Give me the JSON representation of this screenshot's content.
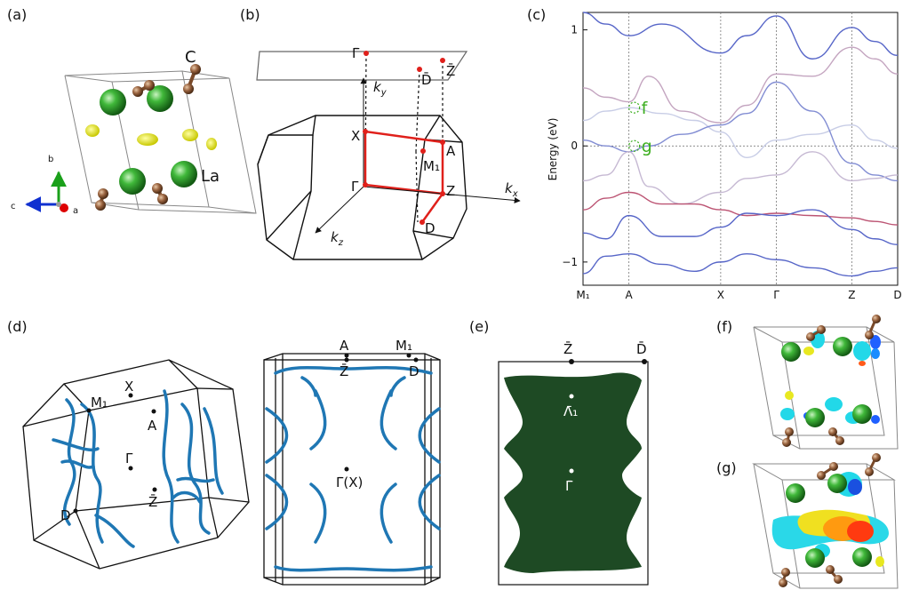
{
  "panel_labels": {
    "a": "(a)",
    "b": "(b)",
    "c": "(c)",
    "d": "(d)",
    "e": "(e)",
    "f": "(f)",
    "g": "(g)"
  },
  "panel_a": {
    "atom_labels": {
      "carbon": "C",
      "lanthanum": "La"
    },
    "axes": {
      "a": "a",
      "b": "b",
      "c": "c"
    }
  },
  "panel_b": {
    "points": {
      "gamma_bar": "Γ̄",
      "d_bar": "D̄",
      "z_bar": "Z̄",
      "x": "X",
      "a": "A",
      "m1": "M₁",
      "gamma": "Γ",
      "z": "Z",
      "d": "D"
    },
    "axis_labels": {
      "ky": "k",
      "ky_sub": "y",
      "kx": "k",
      "kx_sub": "x",
      "kz": "k",
      "kz_sub": "z"
    }
  },
  "chart_data": {
    "type": "line",
    "title": "",
    "xlabel": "",
    "ylabel": "Energy (eV)",
    "ylim": [
      -1.2,
      1.15
    ],
    "yticks": [
      -1,
      0,
      1
    ],
    "yticklabels": [
      "−1",
      "0",
      "1"
    ],
    "x_path": [
      "M₁",
      "A",
      "X",
      "Γ",
      "Z",
      "D"
    ],
    "x_positions": [
      0,
      0.7,
      2.1,
      2.95,
      4.1,
      4.8
    ],
    "color_scale": "blue (low weight) → red (high weight)",
    "annotations": [
      {
        "label": "f",
        "x": 0.7,
        "y": 0.33
      },
      {
        "label": "g",
        "x": 0.7,
        "y": 0.0
      }
    ],
    "series": [
      {
        "x": [
          0,
          0.35,
          0.7,
          1.2,
          2.1,
          2.5,
          2.95,
          3.5,
          4.1,
          4.45,
          4.8
        ],
        "values": [
          1.18,
          1.05,
          0.95,
          1.05,
          0.8,
          0.95,
          1.12,
          0.75,
          1.02,
          0.9,
          0.78
        ],
        "weight": 0.1
      },
      {
        "x": [
          0,
          0.35,
          0.7,
          1.0,
          1.5,
          2.1,
          2.5,
          2.95,
          3.5,
          4.1,
          4.45,
          4.8
        ],
        "values": [
          0.5,
          0.42,
          0.38,
          0.6,
          0.3,
          0.2,
          0.35,
          0.62,
          0.6,
          0.85,
          0.75,
          0.62
        ],
        "weight": 0.6
      },
      {
        "x": [
          0,
          0.35,
          0.7,
          1.2,
          1.7,
          2.1,
          2.5,
          2.95,
          3.5,
          4.1,
          4.45,
          4.8
        ],
        "values": [
          0.22,
          0.3,
          0.33,
          0.28,
          0.22,
          0.12,
          -0.1,
          0.05,
          0.1,
          0.18,
          0.05,
          -0.02
        ],
        "weight": 0.5
      },
      {
        "x": [
          0,
          0.35,
          0.7,
          1.0,
          1.5,
          2.1,
          2.5,
          2.95,
          3.5,
          4.1,
          4.45,
          4.8
        ],
        "values": [
          0.05,
          0.0,
          -0.05,
          0.0,
          0.1,
          0.18,
          0.28,
          0.55,
          0.3,
          -0.15,
          -0.25,
          -0.3
        ],
        "weight": 0.25
      },
      {
        "x": [
          0,
          0.35,
          0.7,
          1.0,
          1.5,
          2.1,
          2.5,
          2.95,
          3.5,
          4.1,
          4.45,
          4.8
        ],
        "values": [
          -0.3,
          -0.25,
          -0.05,
          -0.35,
          -0.5,
          -0.4,
          -0.28,
          -0.25,
          -0.05,
          -0.3,
          -0.28,
          -0.25
        ],
        "weight": 0.55
      },
      {
        "x": [
          0,
          0.35,
          0.7,
          1.2,
          1.7,
          2.1,
          2.5,
          2.95,
          3.5,
          4.1,
          4.45,
          4.8
        ],
        "values": [
          -0.55,
          -0.45,
          -0.4,
          -0.5,
          -0.5,
          -0.55,
          -0.6,
          -0.58,
          -0.6,
          -0.62,
          -0.65,
          -0.68
        ],
        "weight": 0.8
      },
      {
        "x": [
          0,
          0.35,
          0.7,
          1.2,
          1.7,
          2.1,
          2.5,
          2.95,
          3.5,
          4.1,
          4.45,
          4.8
        ],
        "values": [
          -0.75,
          -0.8,
          -0.6,
          -0.78,
          -0.78,
          -0.7,
          -0.58,
          -0.6,
          -0.55,
          -0.72,
          -0.8,
          -0.85
        ],
        "weight": 0.1
      },
      {
        "x": [
          0,
          0.35,
          0.7,
          1.2,
          1.7,
          2.1,
          2.5,
          2.95,
          3.5,
          4.1,
          4.45,
          4.8
        ],
        "values": [
          -1.1,
          -0.95,
          -0.93,
          -1.02,
          -1.08,
          -1.0,
          -0.93,
          -0.98,
          -1.05,
          -1.12,
          -1.08,
          -1.05
        ],
        "weight": 0.1
      }
    ]
  },
  "panel_d": {
    "left_points": {
      "x": "X",
      "m1": "M₁",
      "a": "A",
      "gamma": "Γ",
      "z": "Z̄",
      "d": "D"
    },
    "right_points": {
      "a": "A",
      "z": "Z̄",
      "m1": "M₁",
      "d": "D",
      "gamma_x": "Γ̄(X)"
    }
  },
  "panel_e": {
    "points": {
      "z_bar": "Z̄",
      "d_bar": "D̄",
      "lambda": "Λ̄₁",
      "gamma_bar": "Γ̄"
    }
  },
  "colors": {
    "band_blue": "#3b4cc0",
    "band_red": "#b40426",
    "fermi_surface": "#1f77b4",
    "surface_fs": "#1f4d2a",
    "la_atom": "#2f9e2f",
    "c_atom": "#8b5a3c",
    "highlight": "#3cae1f",
    "red_path": "#e0201b"
  }
}
